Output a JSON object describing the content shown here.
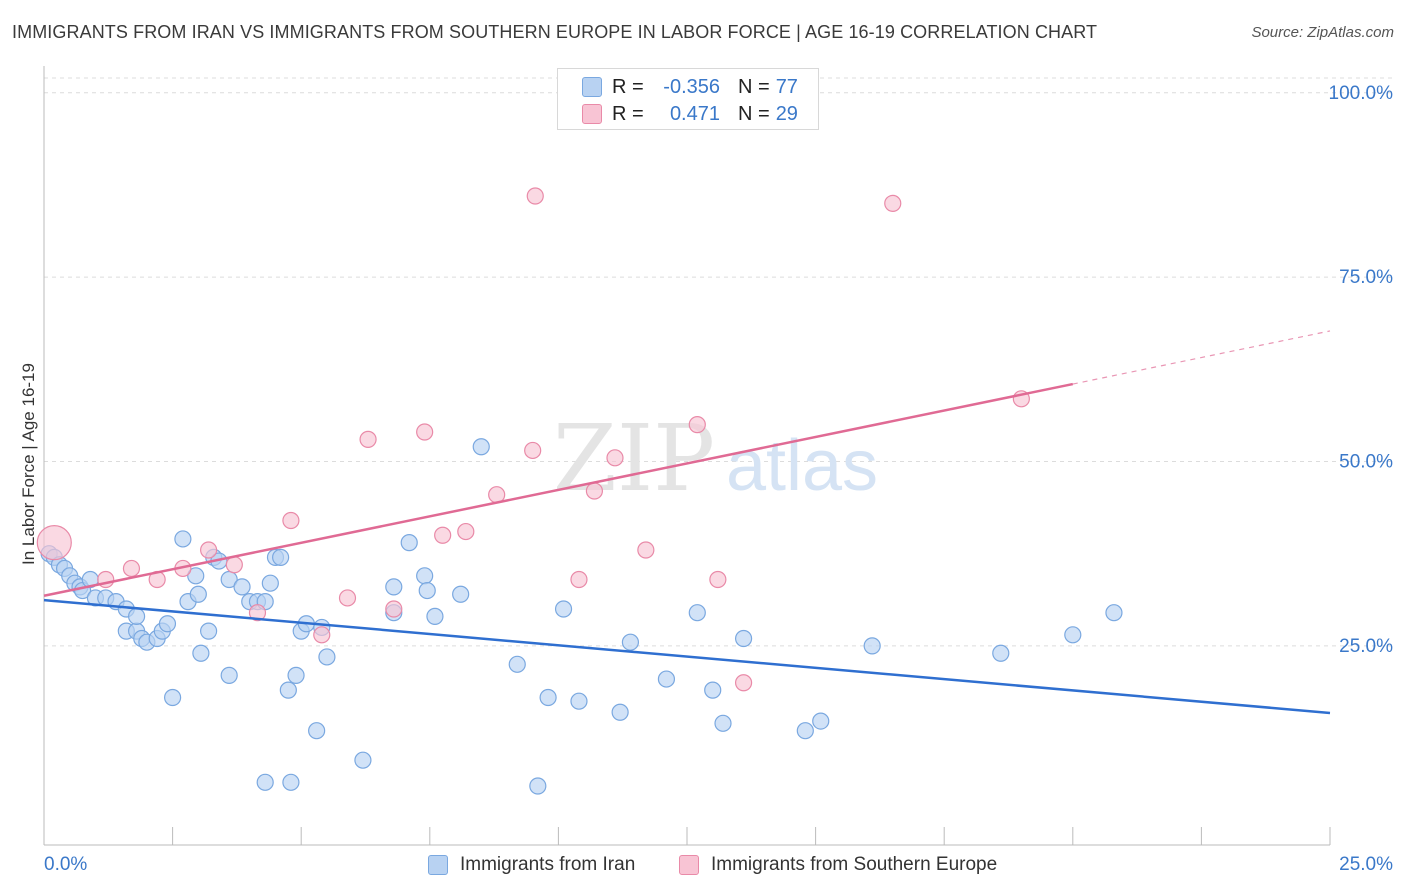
{
  "title": "IMMIGRANTS FROM IRAN VS IMMIGRANTS FROM SOUTHERN EUROPE IN LABOR FORCE | AGE 16-19 CORRELATION CHART",
  "source": "Source: ZipAtlas.com",
  "watermark": {
    "zip": "ZIP",
    "atlas": "atlas"
  },
  "legend": {
    "rows": [
      {
        "r_label": "R =",
        "r_value": "-0.356",
        "n_label": "N =",
        "n_value": "77"
      },
      {
        "r_label": "R =",
        "r_value": "0.471",
        "n_label": "N =",
        "n_value": "29"
      }
    ]
  },
  "bottom_legend": {
    "iran": "Immigrants from Iran",
    "southern_europe": "Immigrants from Southern Europe"
  },
  "colors": {
    "iran_fill": "#b8d2f2",
    "iran_stroke": "#7aa8e0",
    "iran_line": "#2f6fd0",
    "se_fill": "#f8c4d4",
    "se_stroke": "#e98aa8",
    "se_line": "#e06a94",
    "grid": "#dcdcdc",
    "axis_text": "#3a78c9"
  },
  "chart_data": {
    "type": "scatter",
    "title": "IMMIGRANTS FROM IRAN VS IMMIGRANTS FROM SOUTHERN EUROPE IN LABOR FORCE | AGE 16-19 CORRELATION CHART",
    "xlabel": "",
    "ylabel": "In Labor Force | Age 16-19",
    "x_ticks": [
      "0.0%",
      "25.0%"
    ],
    "y_ticks": [
      "100.0%",
      "75.0%",
      "50.0%",
      "25.0%"
    ],
    "xlim": [
      0,
      25
    ],
    "ylim": [
      -2,
      102
    ],
    "grid": true,
    "series": [
      {
        "name": "Immigrants from Iran",
        "points": [
          [
            0.1,
            37.5
          ],
          [
            0.2,
            37
          ],
          [
            0.3,
            36
          ],
          [
            0.4,
            35.5
          ],
          [
            0.5,
            34.5
          ],
          [
            0.6,
            33.5
          ],
          [
            0.7,
            33
          ],
          [
            0.75,
            32.5
          ],
          [
            0.9,
            34
          ],
          [
            1.0,
            31.5
          ],
          [
            1.2,
            31.5
          ],
          [
            1.4,
            31
          ],
          [
            1.6,
            30
          ],
          [
            1.6,
            27
          ],
          [
            1.8,
            27
          ],
          [
            1.8,
            29
          ],
          [
            1.9,
            26
          ],
          [
            2.0,
            25.5
          ],
          [
            2.2,
            26
          ],
          [
            2.3,
            27
          ],
          [
            2.4,
            28
          ],
          [
            2.5,
            18
          ],
          [
            2.7,
            39.5
          ],
          [
            2.8,
            31
          ],
          [
            2.95,
            34.5
          ],
          [
            3.0,
            32
          ],
          [
            3.05,
            24
          ],
          [
            3.2,
            27
          ],
          [
            3.3,
            37
          ],
          [
            3.4,
            36.5
          ],
          [
            3.6,
            34
          ],
          [
            3.6,
            21
          ],
          [
            3.85,
            33
          ],
          [
            4.0,
            31
          ],
          [
            4.15,
            31
          ],
          [
            4.3,
            31
          ],
          [
            4.3,
            6.5
          ],
          [
            4.4,
            33.5
          ],
          [
            4.5,
            37
          ],
          [
            4.6,
            37
          ],
          [
            4.75,
            19
          ],
          [
            4.8,
            6.5
          ],
          [
            4.9,
            21
          ],
          [
            5.0,
            27
          ],
          [
            5.1,
            28
          ],
          [
            5.3,
            13.5
          ],
          [
            5.4,
            27.5
          ],
          [
            5.5,
            23.5
          ],
          [
            6.2,
            9.5
          ],
          [
            6.8,
            33
          ],
          [
            6.8,
            29.5
          ],
          [
            7.1,
            39
          ],
          [
            7.4,
            34.5
          ],
          [
            7.45,
            32.5
          ],
          [
            7.6,
            29
          ],
          [
            8.1,
            32
          ],
          [
            8.5,
            52
          ],
          [
            9.2,
            22.5
          ],
          [
            9.6,
            6
          ],
          [
            9.8,
            18
          ],
          [
            10.1,
            30
          ],
          [
            10.4,
            17.5
          ],
          [
            11.2,
            16
          ],
          [
            11.4,
            25.5
          ],
          [
            12.1,
            20.5
          ],
          [
            12.7,
            29.5
          ],
          [
            13.0,
            19
          ],
          [
            13.2,
            14.5
          ],
          [
            13.6,
            26
          ],
          [
            14.8,
            13.5
          ],
          [
            15.1,
            14.8
          ],
          [
            16.1,
            25
          ],
          [
            18.6,
            24
          ],
          [
            20.0,
            26.5
          ],
          [
            20.8,
            29.5
          ]
        ]
      },
      {
        "name": "Immigrants from Southern Europe",
        "points": [
          [
            0.2,
            39
          ],
          [
            1.2,
            34
          ],
          [
            1.7,
            35.5
          ],
          [
            2.2,
            34
          ],
          [
            2.7,
            35.5
          ],
          [
            3.2,
            38
          ],
          [
            3.7,
            36
          ],
          [
            4.15,
            29.5
          ],
          [
            4.8,
            42
          ],
          [
            5.4,
            26.5
          ],
          [
            5.9,
            31.5
          ],
          [
            6.3,
            53
          ],
          [
            6.8,
            30
          ],
          [
            7.4,
            54
          ],
          [
            7.75,
            40
          ],
          [
            8.2,
            40.5
          ],
          [
            8.8,
            45.5
          ],
          [
            9.5,
            51.5
          ],
          [
            9.55,
            86
          ],
          [
            10.4,
            34
          ],
          [
            10.7,
            46
          ],
          [
            11.1,
            50.5
          ],
          [
            11.7,
            38
          ],
          [
            12.7,
            55
          ],
          [
            13.1,
            34
          ],
          [
            13.6,
            20
          ],
          [
            16.5,
            85
          ],
          [
            19.0,
            58.5
          ]
        ]
      }
    ],
    "trendlines": [
      {
        "series": "Immigrants from Iran",
        "x": [
          0,
          25
        ],
        "y": [
          31.2,
          15.9
        ]
      },
      {
        "series": "Immigrants from Southern Europe",
        "x": [
          0,
          20
        ],
        "y": [
          31.8,
          60.5
        ],
        "dashed_extension_to": [
          25,
          67.7
        ]
      }
    ]
  }
}
